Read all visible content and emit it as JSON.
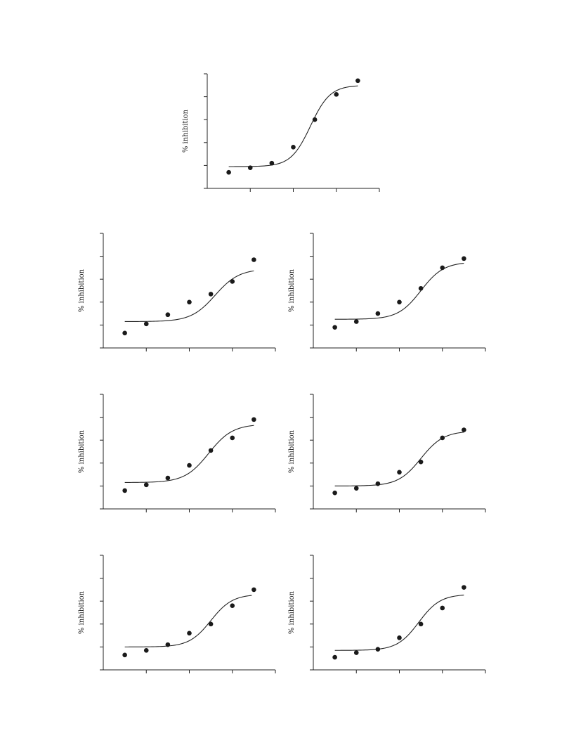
{
  "colors": {
    "ink": "#1a1a1a",
    "background": "#ffffff"
  },
  "chart_data": [
    {
      "type": "scatter",
      "ylabel": "% inhibition",
      "x": [
        1,
        2,
        3,
        4,
        5,
        6,
        7
      ],
      "values": [
        7,
        9,
        11,
        18,
        30,
        41,
        47
      ],
      "fit": {
        "bottom": 9.5,
        "top": 45,
        "mid": 4.8,
        "slope": 2.2,
        "x_range": [
          1,
          7
        ]
      },
      "xlim": [
        0,
        8
      ],
      "ylim": [
        0,
        50
      ],
      "grid": false
    },
    {
      "type": "scatter",
      "ylabel": "% inhibition",
      "x": [
        1,
        2,
        3,
        4,
        5,
        6,
        7
      ],
      "values": [
        6.5,
        10.5,
        14.5,
        20,
        23.5,
        29,
        38.5
      ],
      "fit": {
        "bottom": 11.5,
        "top": 34.5,
        "mid": 5.2,
        "slope": 1.8,
        "x_range": [
          1,
          7
        ]
      },
      "xlim": [
        0,
        8
      ],
      "ylim": [
        0,
        50
      ],
      "grid": false
    },
    {
      "type": "scatter",
      "ylabel": "% inhibition",
      "x": [
        1,
        2,
        3,
        4,
        5,
        6,
        7
      ],
      "values": [
        9,
        11.5,
        15,
        20,
        26,
        35,
        39
      ],
      "fit": {
        "bottom": 12.5,
        "top": 37.5,
        "mid": 5,
        "slope": 1.9,
        "x_range": [
          1,
          7
        ]
      },
      "xlim": [
        0,
        8
      ],
      "ylim": [
        0,
        50
      ],
      "grid": false
    },
    {
      "type": "scatter",
      "ylabel": "% inhibition",
      "x": [
        1,
        2,
        3,
        4,
        5,
        6,
        7
      ],
      "values": [
        8,
        10.5,
        13.5,
        19,
        25.5,
        31,
        39
      ],
      "fit": {
        "bottom": 11.5,
        "top": 37,
        "mid": 4.9,
        "slope": 1.8,
        "x_range": [
          1,
          7
        ]
      },
      "xlim": [
        0,
        8
      ],
      "ylim": [
        0,
        50
      ],
      "grid": false
    },
    {
      "type": "scatter",
      "ylabel": "% inhibition",
      "x": [
        1,
        2,
        3,
        4,
        5,
        6,
        7
      ],
      "values": [
        7,
        9,
        11,
        16,
        20.5,
        31,
        34.5
      ],
      "fit": {
        "bottom": 10,
        "top": 34,
        "mid": 5,
        "slope": 1.9,
        "x_range": [
          1,
          7
        ]
      },
      "xlim": [
        0,
        8
      ],
      "ylim": [
        0,
        50
      ],
      "grid": false
    },
    {
      "type": "scatter",
      "ylabel": "% inhibition",
      "x": [
        1,
        2,
        3,
        4,
        5,
        6,
        7
      ],
      "values": [
        6.5,
        8.5,
        11,
        16,
        20,
        28,
        35
      ],
      "fit": {
        "bottom": 10,
        "top": 33,
        "mid": 5,
        "slope": 2.0,
        "x_range": [
          1,
          6.9
        ]
      },
      "xlim": [
        0,
        8
      ],
      "ylim": [
        0,
        50
      ],
      "grid": false
    },
    {
      "type": "scatter",
      "ylabel": "% inhibition",
      "x": [
        1,
        2,
        3,
        4,
        5,
        6,
        7
      ],
      "values": [
        5.5,
        7.5,
        9,
        14,
        20,
        27,
        36
      ],
      "fit": {
        "bottom": 8.5,
        "top": 33,
        "mid": 4.9,
        "slope": 2.0,
        "x_range": [
          1,
          7
        ]
      },
      "xlim": [
        0,
        8
      ],
      "ylim": [
        0,
        50
      ],
      "grid": false
    }
  ]
}
